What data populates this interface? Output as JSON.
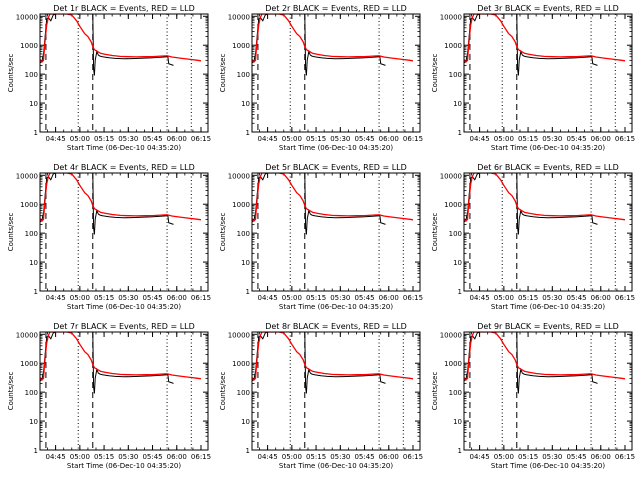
{
  "chart_data": {
    "type": "line",
    "layout": "3x3 grid of log-scale time series panels",
    "title_template": "{det} BLACK = Events, RED = LLD",
    "x_axis": {
      "label": "Start Time (06-Dec-10 04:35:20)",
      "ticks": [
        "04:45",
        "05:00",
        "05:15",
        "05:30",
        "05:45",
        "06:00",
        "06:15"
      ],
      "range_minutes_from_start": [
        0,
        104
      ]
    },
    "y_axis": {
      "label": "Counts/sec",
      "scale": "log",
      "ticks": [
        "1",
        "10",
        "100",
        "1000",
        "10000"
      ],
      "ylim": [
        1,
        12000
      ]
    },
    "vertical_markers": [
      {
        "style": "dashed",
        "x": "04:39:00"
      },
      {
        "style": "dotted",
        "x": "04:59:00"
      },
      {
        "style": "dashed",
        "x": "05:08:00"
      },
      {
        "style": "dotted",
        "x": "05:54:00"
      },
      {
        "style": "dotted",
        "x": "06:09:00"
      }
    ],
    "colors": {
      "events": "#000000",
      "lld": "#ff0000",
      "axes": "#000000"
    },
    "panels": [
      {
        "det": "Det 1r",
        "x_label": "Start Time (06-Dec-10 04:35:20)"
      },
      {
        "det": "Det 2r",
        "x_label": "Start Time (06-Dec-10 04:35:20)"
      },
      {
        "det": "Det 3r",
        "x_label": "Start Time (06-Dec-10 04:35:20)"
      },
      {
        "det": "Det 4r",
        "x_label": "Start Time (06-Dec-10 04:35:20)"
      },
      {
        "det": "Det 5r",
        "x_label": "Start Time (06-Dec-10 04:35:20)"
      },
      {
        "det": "Det 6r",
        "x_label": "Start Time (06-Dec-10 04:35:20)"
      },
      {
        "det": "Det 7r",
        "x_label": "Start Time (06-Dec-10 04:35:20)"
      },
      {
        "det": "Det 8r",
        "x_label": "Start Time (06-Dec-10 04:35:20)"
      },
      {
        "det": "Det 9r",
        "x_label": "Start Time (06-Dec-10 04:35:20)"
      }
    ],
    "series": [
      {
        "name": "Events",
        "color": "#000000",
        "points": [
          [
            "04:35:30",
            250
          ],
          [
            "04:36:30",
            280
          ],
          [
            "04:37:30",
            500
          ],
          [
            "04:38:30",
            2000
          ],
          [
            "04:39:30",
            8000
          ],
          [
            "04:40:30",
            9000
          ],
          [
            "04:42:00",
            7000
          ],
          [
            "04:43:30",
            11000
          ],
          [
            "04:45:00",
            12000
          ],
          [
            "04:47:00",
            12000
          ],
          [
            "04:50:00",
            12000
          ],
          [
            "04:54:00",
            12000
          ],
          [
            "04:58:00",
            12000
          ],
          [
            "05:02:00",
            12000
          ],
          [
            "05:05:00",
            12000
          ],
          [
            "05:08:00",
            12000
          ],
          [
            "05:08:30",
            150
          ],
          [
            "05:09:00",
            90
          ],
          [
            "05:09:30",
            300
          ],
          [
            "05:10:30",
            600
          ],
          [
            "05:11:30",
            450
          ],
          [
            "05:12:30",
            420
          ],
          [
            "05:14:00",
            400
          ],
          [
            "05:18:00",
            370
          ],
          [
            "05:22:00",
            350
          ],
          [
            "05:27:00",
            340
          ],
          [
            "05:32:00",
            345
          ],
          [
            "05:38:00",
            355
          ],
          [
            "05:44:00",
            365
          ],
          [
            "05:50:00",
            385
          ],
          [
            "05:54:30",
            400
          ],
          [
            "05:55:00",
            230
          ],
          [
            "05:58:00",
            200
          ]
        ]
      },
      {
        "name": "LLD",
        "color": "#ff0000",
        "points": [
          [
            "04:35:20",
            320
          ],
          [
            "04:36:30",
            260
          ],
          [
            "04:37:30",
            300
          ],
          [
            "04:38:30",
            1500
          ],
          [
            "04:39:30",
            5000
          ],
          [
            "04:40:30",
            9000
          ],
          [
            "04:41:30",
            12000
          ],
          [
            "04:43:00",
            12000
          ],
          [
            "04:44:30",
            12000
          ],
          [
            "04:46:00",
            12000
          ],
          [
            "04:48:00",
            12000
          ],
          [
            "04:52:00",
            12000
          ],
          [
            "04:55:00",
            11000
          ],
          [
            "04:58:00",
            7000
          ],
          [
            "05:00:00",
            4500
          ],
          [
            "05:03:00",
            2500
          ],
          [
            "05:05:00",
            2000
          ],
          [
            "05:07:00",
            1300
          ],
          [
            "05:08:00",
            900
          ],
          [
            "05:09:00",
            700
          ],
          [
            "05:11:00",
            600
          ],
          [
            "05:13:00",
            520
          ],
          [
            "05:16:00",
            480
          ],
          [
            "05:20:00",
            440
          ],
          [
            "05:25:00",
            410
          ],
          [
            "05:30:00",
            400
          ],
          [
            "05:35:00",
            395
          ],
          [
            "05:40:00",
            400
          ],
          [
            "05:45:00",
            405
          ],
          [
            "05:50:00",
            420
          ],
          [
            "05:54:00",
            430
          ],
          [
            "05:57:00",
            390
          ],
          [
            "06:02:00",
            360
          ],
          [
            "06:07:00",
            330
          ],
          [
            "06:13:00",
            300
          ],
          [
            "06:15:00",
            290
          ]
        ]
      }
    ]
  }
}
